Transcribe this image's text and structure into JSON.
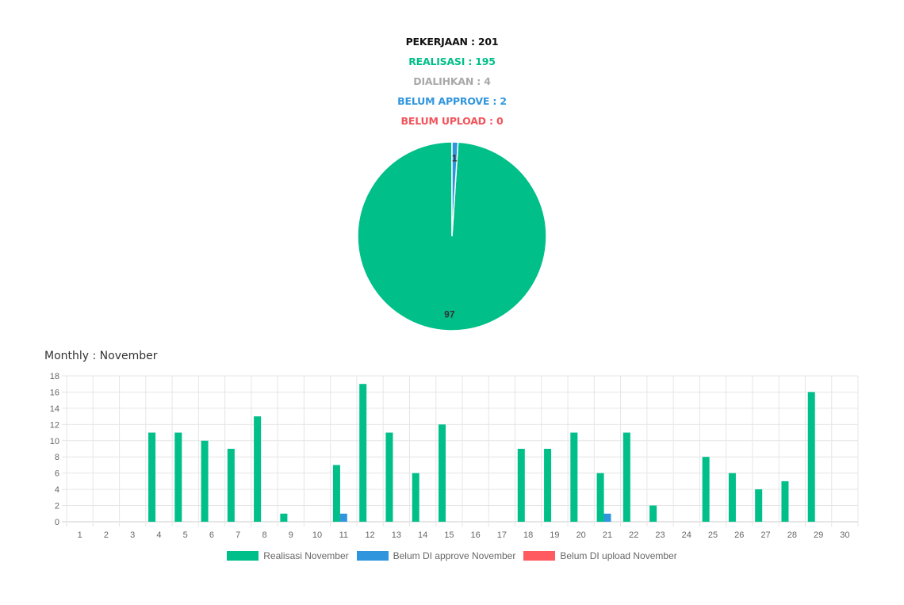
{
  "summary": {
    "pekerjaan": "PEKERJAAN : 201",
    "realisasi": "REALISASI : 195",
    "dialihkan": "DIALIHKAN : 4",
    "belum_approve": "BELUM APPROVE : 2",
    "belum_upload": "BELUM UPLOAD : 0"
  },
  "colors": {
    "realisasi": "#00bf88",
    "belum_approve": "#2f96de",
    "belum_upload": "#ff5a5f",
    "grid": "#e6e6e6",
    "tick": "#666666"
  },
  "monthly_title": "Monthly : November",
  "chart_data": [
    {
      "type": "pie",
      "slices": [
        {
          "label": "97",
          "value": 97,
          "color": "#00bf88"
        },
        {
          "label": "1",
          "value": 1,
          "color": "#2f96de"
        }
      ]
    },
    {
      "type": "bar",
      "categories": [
        "1",
        "2",
        "3",
        "4",
        "5",
        "6",
        "7",
        "8",
        "9",
        "10",
        "11",
        "12",
        "13",
        "14",
        "15",
        "16",
        "17",
        "18",
        "19",
        "20",
        "21",
        "22",
        "23",
        "24",
        "25",
        "26",
        "27",
        "28",
        "29",
        "30"
      ],
      "series": [
        {
          "name": "Realisasi November",
          "color": "#00bf88",
          "values": [
            0,
            0,
            0,
            11,
            11,
            10,
            9,
            13,
            1,
            0,
            7,
            17,
            11,
            6,
            12,
            0,
            0,
            9,
            9,
            11,
            6,
            11,
            2,
            0,
            8,
            6,
            4,
            5,
            16,
            0
          ]
        },
        {
          "name": "Belum DI approve November",
          "color": "#2f96de",
          "values": [
            0,
            0,
            0,
            0,
            0,
            0,
            0,
            0,
            0,
            0,
            1,
            0,
            0,
            0,
            0,
            0,
            0,
            0,
            0,
            0,
            1,
            0,
            0,
            0,
            0,
            0,
            0,
            0,
            0,
            0
          ]
        },
        {
          "name": "Belum DI upload November",
          "color": "#ff5a5f",
          "values": [
            0,
            0,
            0,
            0,
            0,
            0,
            0,
            0,
            0,
            0,
            0,
            0,
            0,
            0,
            0,
            0,
            0,
            0,
            0,
            0,
            0,
            0,
            0,
            0,
            0,
            0,
            0,
            0,
            0,
            0
          ]
        }
      ],
      "y_ticks": [
        "0",
        "2",
        "4",
        "6",
        "8",
        "10",
        "12",
        "14",
        "16",
        "18"
      ],
      "ylim": [
        0,
        18
      ],
      "grid": true,
      "legend": "bottom"
    }
  ]
}
